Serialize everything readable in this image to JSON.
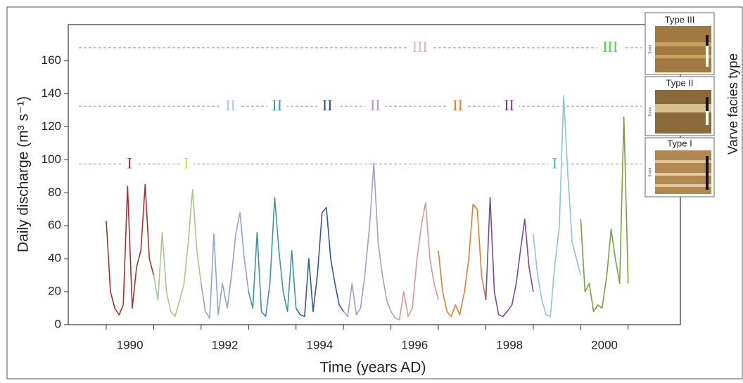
{
  "chart_data": {
    "type": "line",
    "ylabel": "Daily discharge (m³ s⁻¹)",
    "xlabel": "Time (years AD)",
    "xlim": [
      1989.2,
      2002.1
    ],
    "ylim": [
      0,
      182
    ],
    "yticks": [
      0,
      20,
      40,
      60,
      80,
      100,
      120,
      140,
      160
    ],
    "xticks": [
      {
        "value": 1990.5,
        "label": "1990"
      },
      {
        "value": 1992.5,
        "label": "1992"
      },
      {
        "value": 1994.5,
        "label": "1994"
      },
      {
        "value": 1996.5,
        "label": "1996"
      },
      {
        "value": 1998.5,
        "label": "1998"
      },
      {
        "value": 2000.5,
        "label": "2000"
      }
    ],
    "year_boundaries": [
      1990,
      1991,
      1992,
      1993,
      1994,
      1995,
      1996,
      1997,
      1998,
      1999,
      2000,
      2001
    ],
    "series": [
      {
        "color": "#a83232",
        "x": [
          1990.0,
          1990.09,
          1990.18,
          1990.27,
          1990.36,
          1990.45,
          1990.55,
          1990.64,
          1990.73,
          1990.82,
          1990.91,
          1991.0
        ],
        "values": [
          63,
          20,
          10,
          6,
          12,
          84,
          10,
          35,
          45,
          85,
          40,
          30
        ]
      },
      {
        "color": "#a8c88a",
        "x": [
          1991.0,
          1991.09,
          1991.18,
          1991.27,
          1991.36,
          1991.45,
          1991.55,
          1991.64,
          1991.73,
          1991.82,
          1991.91,
          1992.0
        ],
        "values": [
          30,
          15,
          56,
          20,
          8,
          5,
          15,
          25,
          50,
          82,
          45,
          25
        ]
      },
      {
        "color": "#8fa3cc",
        "x": [
          1992.0,
          1992.09,
          1992.18,
          1992.27,
          1992.36,
          1992.45,
          1992.55,
          1992.64,
          1992.73,
          1992.82,
          1992.91,
          1993.0
        ],
        "values": [
          25,
          8,
          4,
          55,
          6,
          25,
          10,
          30,
          55,
          68,
          40,
          20
        ]
      },
      {
        "color": "#3a96a8",
        "x": [
          1993.0,
          1993.09,
          1993.18,
          1993.27,
          1993.36,
          1993.45,
          1993.55,
          1993.64,
          1993.73,
          1993.82,
          1993.91,
          1994.0
        ],
        "values": [
          20,
          10,
          56,
          8,
          5,
          25,
          77,
          45,
          20,
          8,
          45,
          10
        ]
      },
      {
        "color": "#2f5b96",
        "x": [
          1994.0,
          1994.09,
          1994.18,
          1994.27,
          1994.36,
          1994.45,
          1994.55,
          1994.64,
          1994.73,
          1994.82,
          1994.91,
          1995.0
        ],
        "values": [
          10,
          6,
          5,
          40,
          8,
          30,
          68,
          71,
          40,
          25,
          12,
          8
        ]
      },
      {
        "color": "#a89cc8",
        "x": [
          1995.0,
          1995.09,
          1995.18,
          1995.27,
          1995.36,
          1995.45,
          1995.55,
          1995.64,
          1995.73,
          1995.82,
          1995.91,
          1996.0
        ],
        "values": [
          8,
          5,
          25,
          6,
          10,
          30,
          60,
          98,
          50,
          30,
          15,
          8
        ]
      },
      {
        "color": "#d49a9a",
        "x": [
          1996.0,
          1996.09,
          1996.18,
          1996.27,
          1996.36,
          1996.45,
          1996.55,
          1996.64,
          1996.73,
          1996.82,
          1996.91,
          1997.0
        ],
        "values": [
          8,
          4,
          3,
          20,
          5,
          10,
          40,
          60,
          74,
          40,
          25,
          15
        ]
      },
      {
        "color": "#e08030",
        "x": [
          1997.0,
          1997.09,
          1997.18,
          1997.27,
          1997.36,
          1997.45,
          1997.55,
          1997.64,
          1997.73,
          1997.82,
          1997.91,
          1998.0
        ],
        "values": [
          45,
          20,
          8,
          5,
          12,
          6,
          20,
          40,
          73,
          70,
          30,
          15
        ]
      },
      {
        "color": "#7a4a96",
        "x": [
          1998.0,
          1998.09,
          1998.18,
          1998.27,
          1998.36,
          1998.45,
          1998.55,
          1998.64,
          1998.73,
          1998.82,
          1998.91,
          1999.0
        ],
        "values": [
          15,
          77,
          20,
          6,
          5,
          8,
          12,
          25,
          45,
          64,
          35,
          20
        ]
      },
      {
        "color": "#8ec4d8",
        "x": [
          1999.0,
          1999.09,
          1999.18,
          1999.27,
          1999.36,
          1999.45,
          1999.55,
          1999.64,
          1999.73,
          1999.82,
          1999.91,
          2000.0
        ],
        "values": [
          55,
          30,
          15,
          6,
          5,
          35,
          60,
          139,
          90,
          50,
          40,
          30
        ]
      },
      {
        "color": "#7aa040",
        "x": [
          2000.0,
          2000.09,
          2000.18,
          2000.27,
          2000.36,
          2000.45,
          2000.55,
          2000.64,
          2000.73,
          2000.82,
          2000.91,
          2001.0
        ],
        "values": [
          64,
          20,
          25,
          8,
          12,
          10,
          30,
          58,
          40,
          25,
          126,
          25
        ]
      }
    ],
    "facies_levels": [
      {
        "y": 97.5,
        "labels": [
          {
            "text": "I",
            "x": 1990.49,
            "color": "#c0302f"
          },
          {
            "text": "I",
            "x": 1991.69,
            "color": "#d8e030"
          },
          {
            "text": "I",
            "x": 1999.45,
            "color": "#30c0d8"
          }
        ]
      },
      {
        "y": 132.5,
        "labels": [
          {
            "text": "II",
            "x": 1992.62,
            "color": "#b0cce0"
          },
          {
            "text": "II",
            "x": 1993.6,
            "color": "#3a9aa0"
          },
          {
            "text": "II",
            "x": 1994.66,
            "color": "#2a4f8c"
          },
          {
            "text": "II",
            "x": 1995.67,
            "color": "#b898c8"
          },
          {
            "text": "II",
            "x": 1997.41,
            "color": "#e08030"
          },
          {
            "text": "II",
            "x": 1998.49,
            "color": "#7a3a8a"
          }
        ]
      },
      {
        "y": 168,
        "labels": [
          {
            "text": "III",
            "x": 1996.61,
            "color": "#f0b0b0"
          },
          {
            "text": "III",
            "x": 2000.62,
            "color": "#40e040"
          }
        ]
      }
    ],
    "facies_panel": {
      "title": "Varve facies type",
      "types": [
        "Type III",
        "Type II",
        "Type I"
      ],
      "scale_label": "5 mm"
    }
  }
}
